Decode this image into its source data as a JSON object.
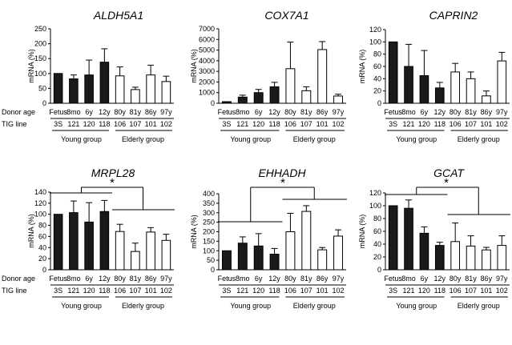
{
  "figure": {
    "donor_age_label": "Donor age",
    "tig_line_label": "TIG line",
    "donor_ages": [
      "Fetus",
      "8mo",
      "6y",
      "12y",
      "80y",
      "81y",
      "86y",
      "97y"
    ],
    "tig_lines": [
      "3S",
      "121",
      "120",
      "118",
      "106",
      "107",
      "101",
      "102"
    ],
    "young_group_label": "Young group",
    "elderly_group_label": "Elderly group",
    "young_color": "#1a1a1a",
    "elderly_color": "#ffffff"
  },
  "chart_data": [
    {
      "type": "bar",
      "title": "ALDH5A1",
      "ylabel": "mRNA (%)",
      "ylim": [
        0,
        250
      ],
      "yticks": [
        0,
        50,
        100,
        150,
        200,
        250
      ],
      "categories": [
        "Fetus",
        "8mo",
        "6y",
        "12y",
        "80y",
        "81y",
        "86y",
        "97y"
      ],
      "values": [
        100,
        82,
        95,
        138,
        92,
        46,
        95,
        73
      ],
      "errors": [
        0,
        13,
        50,
        45,
        30,
        8,
        33,
        18
      ],
      "significance": null
    },
    {
      "type": "bar",
      "title": "COX7A1",
      "ylabel": "mRNA (%)",
      "ylim": [
        0,
        7000
      ],
      "yticks": [
        0,
        1000,
        2000,
        3000,
        4000,
        5000,
        6000,
        7000
      ],
      "categories": [
        "Fetus",
        "8mo",
        "6y",
        "12y",
        "80y",
        "81y",
        "86y",
        "97y"
      ],
      "values": [
        150,
        580,
        1000,
        1550,
        3250,
        1180,
        5050,
        680
      ],
      "errors": [
        0,
        180,
        300,
        420,
        2500,
        370,
        750,
        170
      ],
      "significance": null
    },
    {
      "type": "bar",
      "title": "CAPRIN2",
      "ylabel": "mRNA (%)",
      "ylim": [
        0,
        120
      ],
      "yticks": [
        0,
        20,
        40,
        60,
        80,
        100,
        120
      ],
      "categories": [
        "Fetus",
        "8mo",
        "6y",
        "12y",
        "80y",
        "81y",
        "86y",
        "97y"
      ],
      "values": [
        100,
        60,
        45,
        25,
        51,
        40,
        12,
        69
      ],
      "errors": [
        0,
        36,
        41,
        9,
        14,
        11,
        8,
        14
      ],
      "significance": null
    },
    {
      "type": "bar",
      "title": "MRPL28",
      "ylabel": "mRNA (%)",
      "ylim": [
        0,
        140
      ],
      "yticks": [
        0,
        20,
        40,
        60,
        80,
        100,
        120,
        140
      ],
      "categories": [
        "Fetus",
        "8mo",
        "6y",
        "12y",
        "80y",
        "81y",
        "86y",
        "97y"
      ],
      "values": [
        100,
        103,
        86,
        105,
        69,
        33,
        68,
        53
      ],
      "errors": [
        0,
        21,
        35,
        20,
        13,
        15,
        8,
        11
      ],
      "significance": "*"
    },
    {
      "type": "bar",
      "title": "EHHADH",
      "ylabel": "mRNA (%)",
      "ylim": [
        0,
        400
      ],
      "yticks": [
        0,
        50,
        100,
        150,
        200,
        250,
        300,
        350,
        400
      ],
      "categories": [
        "Fetus",
        "8mo",
        "6y",
        "12y",
        "80y",
        "81y",
        "86y",
        "97y"
      ],
      "values": [
        100,
        140,
        125,
        82,
        200,
        307,
        105,
        177
      ],
      "errors": [
        0,
        33,
        65,
        30,
        97,
        30,
        12,
        33
      ],
      "significance": "*"
    },
    {
      "type": "bar",
      "title": "GCAT",
      "ylabel": "mRNA (%)",
      "ylim": [
        0,
        120
      ],
      "yticks": [
        0,
        20,
        40,
        60,
        80,
        100,
        120
      ],
      "categories": [
        "Fetus",
        "8mo",
        "6y",
        "12y",
        "80y",
        "81y",
        "86y",
        "97y"
      ],
      "values": [
        100,
        96,
        57,
        38,
        44,
        37,
        31,
        38
      ],
      "errors": [
        0,
        13,
        10,
        5,
        29,
        16,
        4,
        15
      ],
      "significance": "*"
    }
  ]
}
